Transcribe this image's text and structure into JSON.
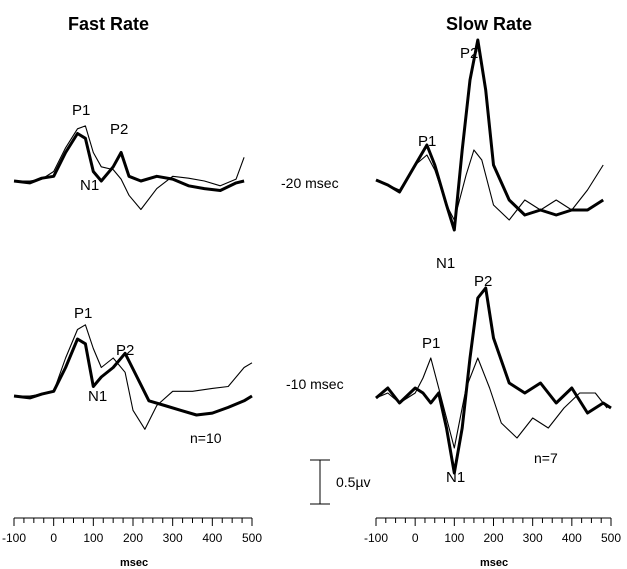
{
  "labels": {
    "fast_title": "Fast Rate",
    "slow_title": "Slow Rate",
    "row1_label": "-20 msec",
    "row2_label": "-10 msec",
    "n_fast": "n=10",
    "n_slow": "n=7",
    "scale_label": "0.5µv",
    "x_unit": "msec"
  },
  "chart_data": [
    {
      "type": "line",
      "panel": "Fast Rate, -20 msec",
      "x_unit": "msec",
      "xlim": [
        -100,
        500
      ],
      "series": [
        {
          "values_x": [
            -100,
            -60,
            -30,
            0,
            30,
            60,
            80,
            100,
            120,
            150,
            170,
            190,
            220,
            260,
            300,
            340,
            380,
            420,
            460,
            480
          ],
          "values_y": [
            0,
            0,
            0.02,
            0.1,
            0.35,
            0.55,
            0.58,
            0.3,
            0.15,
            0.12,
            0.02,
            -0.15,
            -0.3,
            -0.08,
            0.05,
            0.03,
            0,
            -0.05,
            0.02,
            0.25
          ]
        },
        {
          "values_x": [
            -100,
            -60,
            -30,
            0,
            30,
            60,
            80,
            100,
            120,
            150,
            170,
            190,
            220,
            260,
            300,
            340,
            380,
            420,
            460,
            480
          ],
          "values_y": [
            0,
            -0.02,
            0.03,
            0.05,
            0.3,
            0.5,
            0.45,
            0.1,
            0,
            0.15,
            0.3,
            0.05,
            0,
            0.05,
            0.02,
            -0.05,
            -0.08,
            -0.1,
            -0.02,
            0
          ]
        }
      ],
      "peaks": [
        "P1",
        "P2",
        "N1"
      ]
    },
    {
      "type": "line",
      "panel": "Fast Rate, -10 msec",
      "x_unit": "msec",
      "xlim": [
        -100,
        500
      ],
      "series": [
        {
          "values_x": [
            -100,
            -60,
            -30,
            0,
            30,
            60,
            80,
            100,
            120,
            150,
            180,
            200,
            230,
            260,
            300,
            350,
            400,
            440,
            480,
            500
          ],
          "values_y": [
            0,
            0,
            0.02,
            0.05,
            0.4,
            0.7,
            0.75,
            0.5,
            0.3,
            0.4,
            0.25,
            -0.15,
            -0.35,
            -0.1,
            0.05,
            0.05,
            0.08,
            0.1,
            0.3,
            0.35
          ]
        },
        {
          "values_x": [
            -100,
            -60,
            -30,
            0,
            30,
            60,
            80,
            100,
            120,
            150,
            180,
            210,
            240,
            280,
            320,
            360,
            400,
            440,
            480,
            500
          ],
          "values_y": [
            0,
            -0.02,
            0.02,
            0.05,
            0.3,
            0.6,
            0.55,
            0.1,
            0.2,
            0.3,
            0.45,
            0.2,
            -0.05,
            -0.1,
            -0.15,
            -0.2,
            -0.18,
            -0.12,
            -0.05,
            0
          ]
        }
      ],
      "peaks": [
        "P1",
        "P2",
        "N1"
      ]
    },
    {
      "type": "line",
      "panel": "Slow Rate, -20 msec",
      "x_unit": "msec",
      "xlim": [
        -100,
        500
      ],
      "series": [
        {
          "values_x": [
            -100,
            -70,
            -40,
            0,
            30,
            50,
            80,
            100,
            130,
            150,
            170,
            200,
            240,
            280,
            320,
            360,
            400,
            440,
            480
          ],
          "values_y": [
            0,
            -0.05,
            -0.1,
            0.15,
            0.25,
            0.1,
            -0.25,
            -0.4,
            0.05,
            0.3,
            0.2,
            -0.25,
            -0.4,
            -0.2,
            -0.3,
            -0.2,
            -0.3,
            -0.1,
            0.15
          ]
        },
        {
          "values_x": [
            -100,
            -70,
            -40,
            0,
            30,
            50,
            80,
            100,
            120,
            140,
            160,
            180,
            200,
            240,
            280,
            320,
            360,
            400,
            440,
            480
          ],
          "values_y": [
            0,
            -0.05,
            -0.12,
            0.15,
            0.35,
            0.15,
            -0.25,
            -0.5,
            0.3,
            1.0,
            1.4,
            0.9,
            0.15,
            -0.2,
            -0.35,
            -0.3,
            -0.35,
            -0.3,
            -0.3,
            -0.2
          ]
        }
      ],
      "peaks": [
        "P1",
        "P2",
        "N1"
      ]
    },
    {
      "type": "line",
      "panel": "Slow Rate, -10 msec",
      "x_unit": "msec",
      "xlim": [
        -100,
        500
      ],
      "series": [
        {
          "values_x": [
            -100,
            -70,
            -40,
            0,
            20,
            40,
            60,
            80,
            100,
            130,
            160,
            190,
            220,
            260,
            300,
            340,
            380,
            420,
            460,
            490
          ],
          "values_y": [
            0,
            0.05,
            -0.05,
            0.05,
            0.2,
            0.4,
            0.1,
            -0.2,
            -0.5,
            0.1,
            0.4,
            0.1,
            -0.25,
            -0.4,
            -0.2,
            -0.3,
            -0.1,
            0.05,
            0.05,
            -0.1
          ]
        },
        {
          "values_x": [
            -100,
            -70,
            -40,
            0,
            20,
            40,
            60,
            80,
            100,
            120,
            140,
            160,
            180,
            200,
            240,
            280,
            320,
            360,
            400,
            440,
            480,
            500
          ],
          "values_y": [
            0,
            0.1,
            -0.05,
            0.1,
            0.05,
            -0.05,
            0.05,
            -0.3,
            -0.75,
            -0.3,
            0.4,
            1.0,
            1.1,
            0.6,
            0.15,
            0.05,
            0.15,
            -0.05,
            0.1,
            -0.15,
            -0.05,
            -0.1
          ]
        }
      ],
      "peaks": [
        "P1",
        "P2",
        "N1"
      ]
    }
  ],
  "x_axis": {
    "ticks": [
      "-100",
      "0",
      "100",
      "200",
      "300",
      "400",
      "500"
    ]
  }
}
